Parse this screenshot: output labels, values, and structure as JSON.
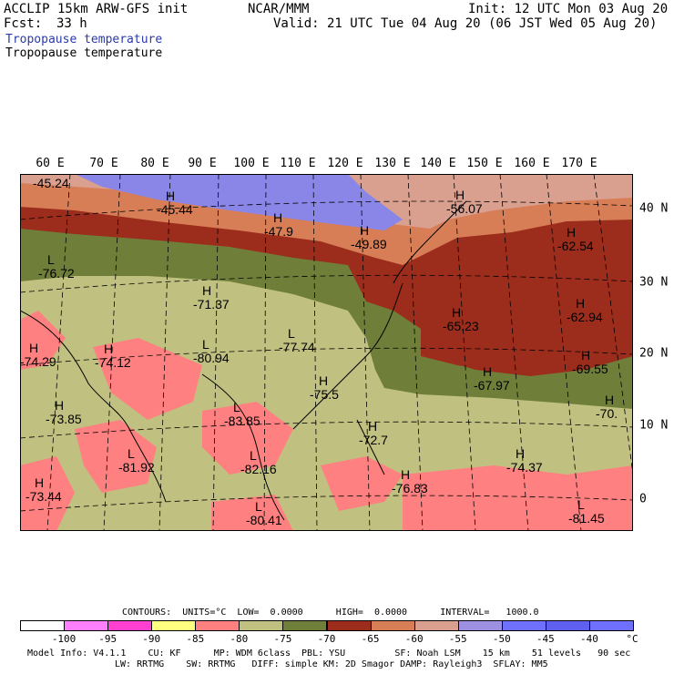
{
  "header": {
    "model": "ACCLIP 15km ARW-GFS init",
    "org": "NCAR/MMM",
    "init": "Init: 12 UTC Mon 03 Aug 20",
    "fcst_label": "Fcst:",
    "fcst_value": "33 h",
    "valid": "Valid: 21 UTC Tue 04 Aug 20 (06 JST Wed 05 Aug 20)",
    "field_1": "Tropopause temperature",
    "field_2": "Tropopause temperature"
  },
  "map": {
    "lon_labels": [
      "60 E",
      "70 E",
      "80 E",
      "90 E",
      "100 E",
      "110 E",
      "120 E",
      "130 E",
      "140 E",
      "150 E",
      "160 E",
      "170 E"
    ],
    "lat_labels": [
      "40 N",
      "30 N",
      "20 N",
      "10 N",
      "0"
    ],
    "extrema": [
      {
        "type": "",
        "value": "-45.24"
      },
      {
        "type": "H",
        "value": "-45.44"
      },
      {
        "type": "H",
        "value": "-47.9"
      },
      {
        "type": "H",
        "value": "-49.89"
      },
      {
        "type": "H",
        "value": "-56.07"
      },
      {
        "type": "H",
        "value": "-62.54"
      },
      {
        "type": "L",
        "value": "-76.72"
      },
      {
        "type": "H",
        "value": "-71.37"
      },
      {
        "type": "H",
        "value": "-65.23"
      },
      {
        "type": "H",
        "value": "-62.94"
      },
      {
        "type": "L",
        "value": "-77.74"
      },
      {
        "type": "H",
        "value": "-74.12"
      },
      {
        "type": "H",
        "value": "-74.29"
      },
      {
        "type": "L",
        "value": "-80.94"
      },
      {
        "type": "H",
        "value": "-69.55"
      },
      {
        "type": "H",
        "value": "-67.97"
      },
      {
        "type": "H",
        "value": "-75.5"
      },
      {
        "type": "H",
        "value": "-73.85"
      },
      {
        "type": "L",
        "value": "-83.85"
      },
      {
        "type": "H",
        "value": "-70."
      },
      {
        "type": "H",
        "value": "-72.7"
      },
      {
        "type": "H",
        "value": "-74.37"
      },
      {
        "type": "L",
        "value": "-81.92"
      },
      {
        "type": "L",
        "value": "-82.16"
      },
      {
        "type": "H",
        "value": "-76.83"
      },
      {
        "type": "H",
        "value": "-73.44"
      },
      {
        "type": "L",
        "value": "-80.41"
      },
      {
        "type": "L",
        "value": "-81.45"
      }
    ]
  },
  "contours_line": "CONTOURS:  UNITS=°C  LOW=  0.0000      HIGH=  0.0000      INTERVAL=   1000.0",
  "colorbar": {
    "labels": [
      "-100",
      "-95",
      "-90",
      "-85",
      "-80",
      "-75",
      "-70",
      "-65",
      "-60",
      "-55",
      "-50",
      "-45",
      "-40"
    ],
    "unit": "°C",
    "colors": [
      "#ffffff",
      "#ff80ff",
      "#ff40d0",
      "#ffff80",
      "#ff8080",
      "#c0c080",
      "#6f7f3a",
      "#9c2d1c",
      "#d87e56",
      "#d9a090",
      "#9e90e0",
      "#7070ff",
      "#6060f0",
      "#6f70ff"
    ]
  },
  "model_info": {
    "line1": "Model Info: V4.1.1    CU: KF      MP: WDM 6class  PBL: YSU         SF: Noah LSM    15 km    51 levels   90 sec",
    "line2": "LW: RRTMG    SW: RRTMG   DIFF: simple KM: 2D Smagor DAMP: Rayleigh3  SFLAY: MM5"
  },
  "colors": {
    "band_blue": "#8a86e8",
    "band_pink": "#d9a090",
    "band_orange": "#d87e56",
    "band_red": "#9c2d1c",
    "band_olive": "#6f7f3a",
    "band_khaki": "#c0c080",
    "band_salmon": "#ff8080"
  }
}
